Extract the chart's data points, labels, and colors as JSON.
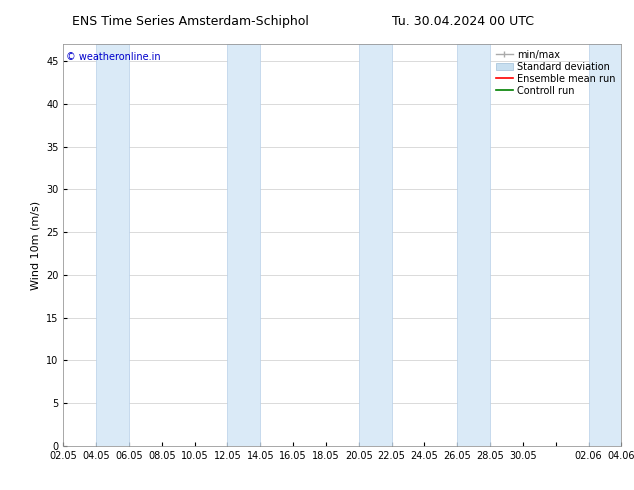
{
  "title_left": "ENS Time Series Amsterdam-Schiphol",
  "title_right": "Tu. 30.04.2024 00 UTC",
  "ylabel": "Wind 10m (m/s)",
  "watermark": "© weatheronline.in",
  "watermark_color": "#0000cc",
  "background_color": "#ffffff",
  "plot_bg_color": "#ffffff",
  "ylim": [
    0,
    47
  ],
  "yticks": [
    0,
    5,
    10,
    15,
    20,
    25,
    30,
    35,
    40,
    45
  ],
  "x_start": 0,
  "x_end": 34,
  "xtick_labels": [
    "02.05",
    "04.05",
    "06.05",
    "08.05",
    "10.05",
    "12.05",
    "14.05",
    "16.05",
    "18.05",
    "20.05",
    "22.05",
    "24.05",
    "26.05",
    "28.05",
    "30.05",
    "",
    "02.06",
    "04.06"
  ],
  "xtick_positions": [
    0,
    2,
    4,
    6,
    8,
    10,
    12,
    14,
    16,
    18,
    20,
    22,
    24,
    26,
    28,
    30,
    32,
    34
  ],
  "shaded_bands": [
    [
      2,
      4
    ],
    [
      10,
      12
    ],
    [
      18,
      20
    ],
    [
      24,
      26
    ],
    [
      32,
      34
    ]
  ],
  "band_color": "#daeaf7",
  "band_edge_color": "#b8d0e8",
  "grid_color": "#cccccc",
  "title_fontsize": 9,
  "axis_fontsize": 8,
  "tick_fontsize": 7,
  "legend_fontsize": 7,
  "watermark_fontsize": 7
}
